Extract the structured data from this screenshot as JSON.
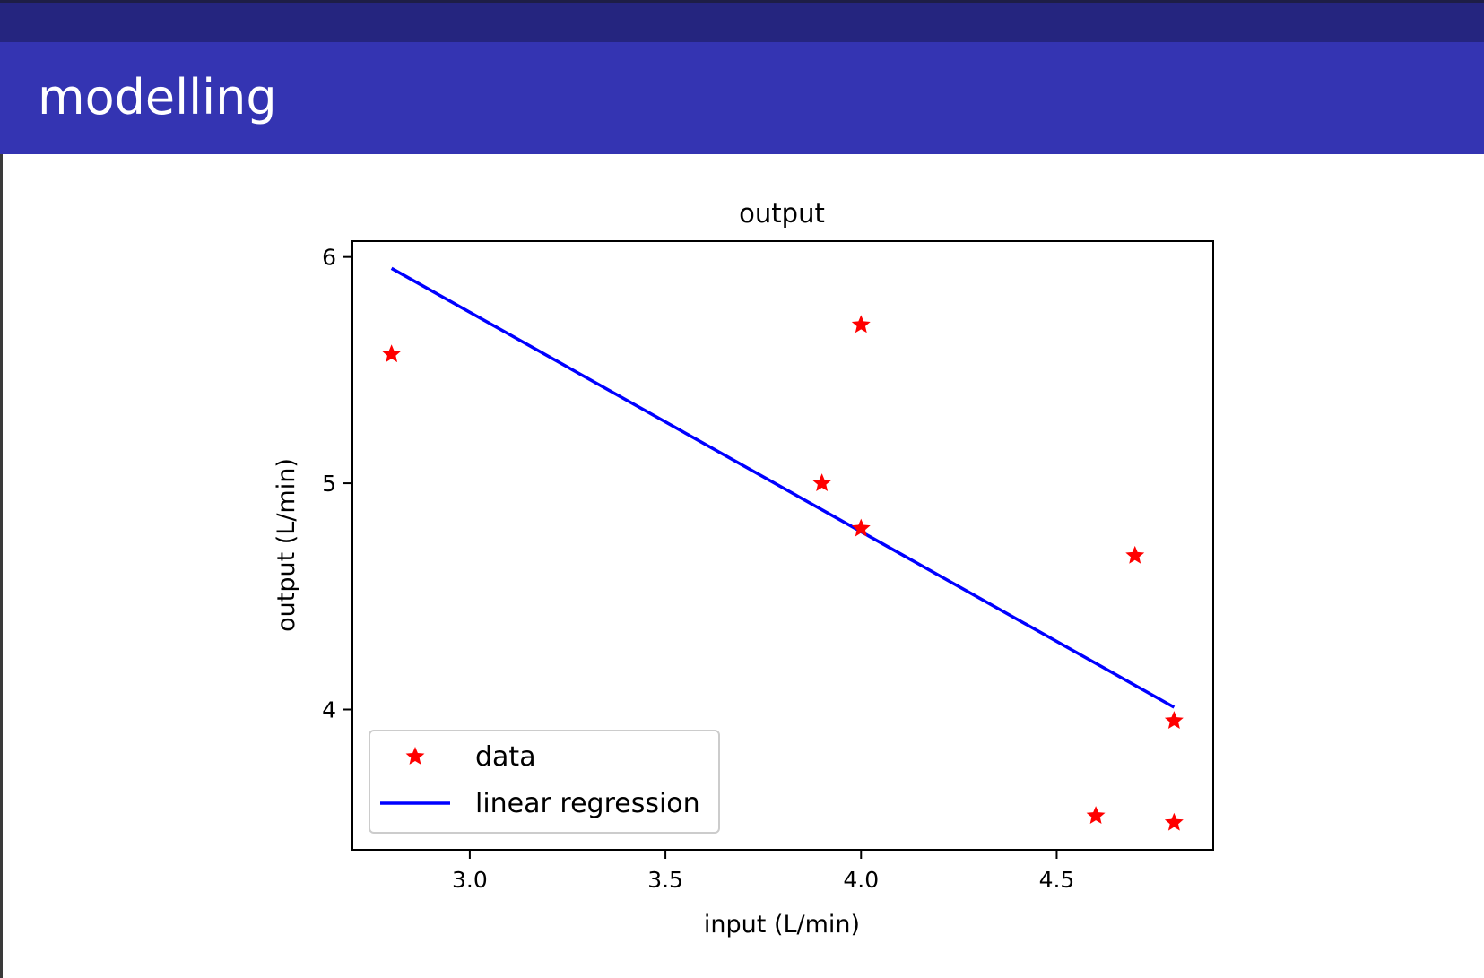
{
  "slide": {
    "title": "modelling"
  },
  "chart_data": {
    "type": "scatter",
    "title": "output",
    "xlabel": "input (L/min)",
    "ylabel": "output (L/min)",
    "xlim": [
      2.7,
      4.9
    ],
    "ylim": [
      3.38,
      6.07
    ],
    "xticks": [
      3.0,
      3.5,
      4.0,
      4.5
    ],
    "xtick_labels": [
      "3.0",
      "3.5",
      "4.0",
      "4.5"
    ],
    "yticks": [
      4,
      5,
      6
    ],
    "ytick_labels": [
      "4",
      "5",
      "6"
    ],
    "grid": false,
    "legend_position": "lower-left",
    "series": [
      {
        "name": "data",
        "kind": "scatter",
        "marker": "star",
        "color": "#ff0000",
        "points": [
          [
            2.8,
            5.57
          ],
          [
            4.0,
            5.7
          ],
          [
            3.9,
            5.0
          ],
          [
            4.0,
            4.8
          ],
          [
            4.7,
            4.68
          ],
          [
            4.8,
            3.95
          ],
          [
            4.6,
            3.53
          ],
          [
            4.8,
            3.5
          ]
        ]
      },
      {
        "name": "linear regression",
        "kind": "line",
        "color": "#0000ff",
        "points": [
          [
            2.8,
            5.95
          ],
          [
            4.8,
            4.01
          ]
        ]
      }
    ]
  }
}
